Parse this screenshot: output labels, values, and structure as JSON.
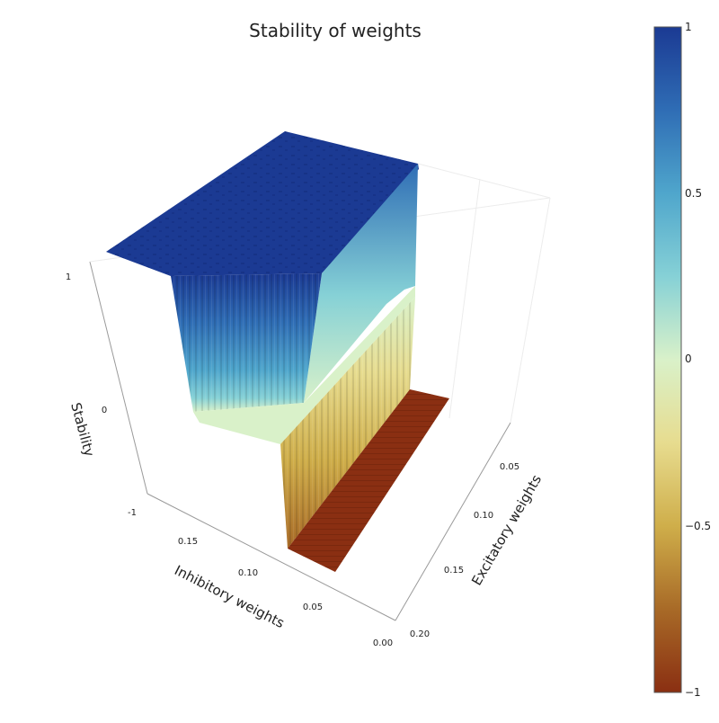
{
  "chart_data": {
    "type": "surface3d",
    "title": "Stability of weights",
    "xlabel": "Inhibitory weights",
    "ylabel": "Excitatory weights",
    "zlabel": "Stability",
    "x_ticks": [
      "0.00",
      "0.05",
      "0.10",
      "0.15"
    ],
    "y_ticks": [
      "0.05",
      "0.10",
      "0.15",
      "0.20"
    ],
    "z_ticks": [
      "-1",
      "0",
      "1"
    ],
    "xlim": [
      0.0,
      0.2
    ],
    "ylim": [
      0.0,
      0.2
    ],
    "zlim": [
      -1,
      1
    ],
    "regions": [
      {
        "description": "plateau",
        "stability": 1
      },
      {
        "description": "step",
        "stability": 0
      },
      {
        "description": "floor",
        "stability": -1
      }
    ],
    "colorbar": {
      "ticks": [
        "1",
        "0.5",
        "0",
        "−0.5",
        "−1"
      ],
      "range": [
        -1,
        1
      ],
      "colors": [
        "#1b3a93",
        "#2f6db5",
        "#4fa6cc",
        "#86d1d6",
        "#d9f1c9",
        "#e7dc8f",
        "#cfae4a",
        "#a86a27",
        "#8a2f12"
      ]
    }
  }
}
